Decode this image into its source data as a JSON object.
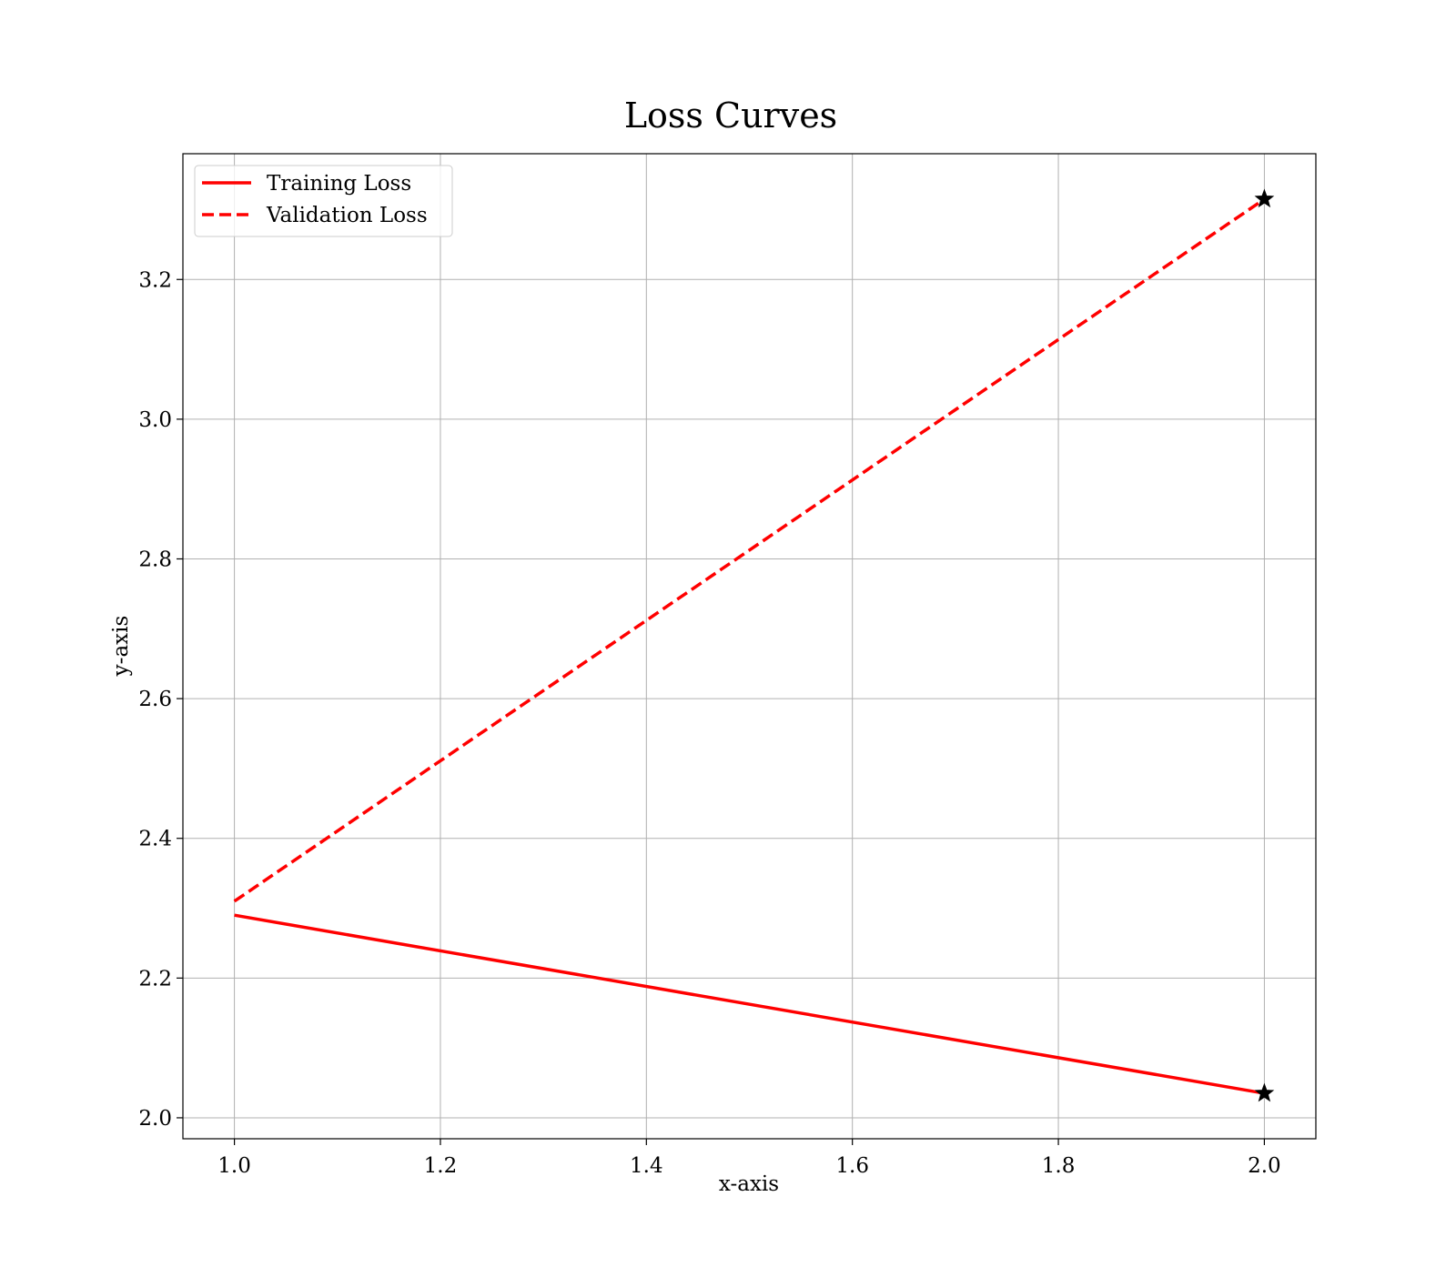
{
  "chart_data": {
    "type": "line",
    "title": "Loss Curves",
    "xlabel": "x-axis",
    "ylabel": "y-axis",
    "xlim": [
      0.95,
      2.05
    ],
    "ylim": [
      1.97,
      3.38
    ],
    "xticks": [
      1.0,
      1.2,
      1.4,
      1.6,
      1.8,
      2.0
    ],
    "xtick_labels": [
      "1.0",
      "1.2",
      "1.4",
      "1.6",
      "1.8",
      "2.0"
    ],
    "yticks": [
      2.0,
      2.2,
      2.4,
      2.6,
      2.8,
      3.0,
      3.2
    ],
    "ytick_labels": [
      "2.0",
      "2.2",
      "2.4",
      "2.6",
      "2.8",
      "3.0",
      "3.2"
    ],
    "grid": true,
    "legend_position": "upper-left",
    "series": [
      {
        "name": "Training Loss",
        "color": "#ff0000",
        "line_style": "solid",
        "x": [
          1.0,
          2.0
        ],
        "y": [
          2.29,
          2.035
        ],
        "end_marker": "star"
      },
      {
        "name": "Validation Loss",
        "color": "#ff0000",
        "line_style": "dashed",
        "x": [
          1.0,
          2.0
        ],
        "y": [
          2.31,
          3.315
        ],
        "end_marker": "star"
      }
    ]
  }
}
